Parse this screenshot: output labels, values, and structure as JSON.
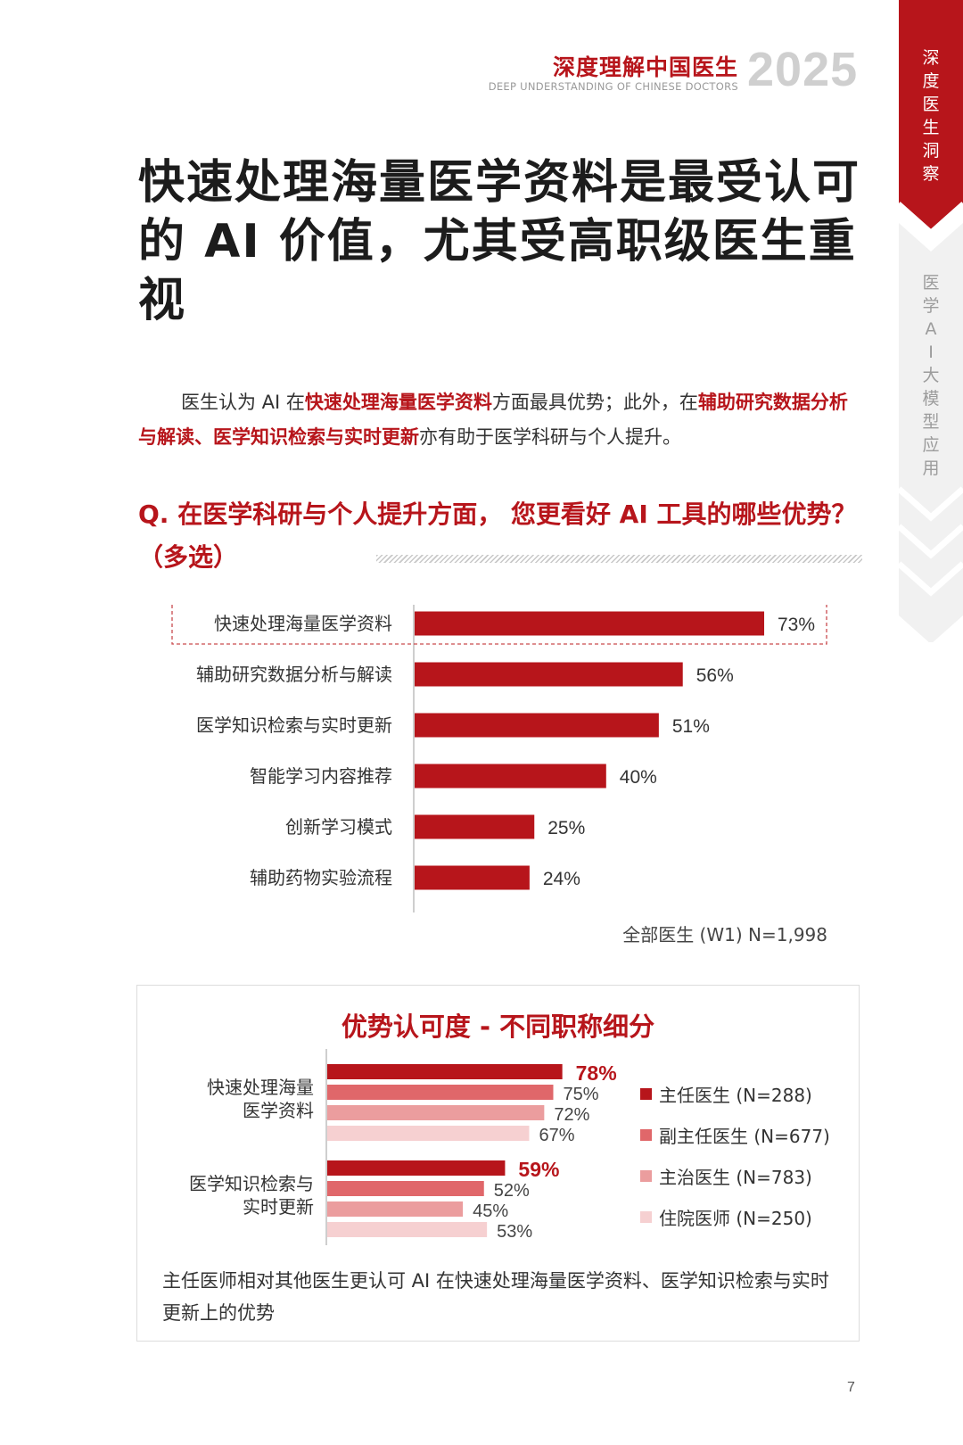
{
  "header": {
    "title_cn": "深度理解中国医生",
    "title_en": "DEEP UNDERSTANDING OF CHINESE DOCTORS",
    "year": "2025"
  },
  "side_tabs": {
    "active": "深度医生洞察",
    "inactive": "医学AI大模型应用"
  },
  "title": "快速处理海量医学资料是最受认可的 AI 价值，尤其受高职级医生重视",
  "intro": {
    "p1": "医生认为 AI 在",
    "h1": "快速处理海量医学资料",
    "p2": "方面最具优势；此外，在",
    "h2": "辅助研究数据分析与解读、医学知识检索与实时更新",
    "p3": "亦有助于医学科研与个人提升。"
  },
  "question": "Q. 在医学科研与个人提升方面， 您更看好 AI 工具的哪些优势？（多选）",
  "colors": {
    "accent": "#b7151b",
    "s1": "#b7151b",
    "s2": "#e0676a",
    "s3": "#eb9d9e",
    "s4": "#f6d0d1"
  },
  "chart_data": [
    {
      "type": "bar",
      "orientation": "horizontal",
      "categories": [
        "快速处理海量医学资料",
        "辅助研究数据分析与解读",
        "医学知识检索与实时更新",
        "智能学习内容推荐",
        "创新学习模式",
        "辅助药物实验流程"
      ],
      "values": [
        73,
        56,
        51,
        40,
        25,
        24
      ],
      "value_labels": [
        "73%",
        "56%",
        "51%",
        "40%",
        "25%",
        "24%"
      ],
      "highlighted_category": "快速处理海量医学资料",
      "note": "全部医生 (W1) N=1,998",
      "xlim": [
        0,
        100
      ]
    },
    {
      "type": "bar",
      "orientation": "horizontal",
      "title": "优势认可度 - 不同职称细分",
      "categories": [
        "快速处理海量医学资料",
        "医学知识检索与实时更新"
      ],
      "category_lines": [
        [
          "快速处理海量",
          "医学资料"
        ],
        [
          "医学知识检索与",
          "实时更新"
        ]
      ],
      "series": [
        {
          "name": "主任医生 (N=288)",
          "values": [
            78,
            59
          ],
          "labels": [
            "78%",
            "59%"
          ]
        },
        {
          "name": "副主任医生 (N=677)",
          "values": [
            75,
            52
          ],
          "labels": [
            "75%",
            "52%"
          ]
        },
        {
          "name": "主治医生 (N=783)",
          "values": [
            72,
            45
          ],
          "labels": [
            "72%",
            "45%"
          ]
        },
        {
          "name": "住院医师 (N=250)",
          "values": [
            67,
            53
          ],
          "labels": [
            "67%",
            "53%"
          ]
        }
      ],
      "note": "主任医师相对其他医生更认可 AI 在快速处理海量医学资料、医学知识检索与实时更新上的优势",
      "xlim": [
        0,
        100
      ]
    }
  ],
  "page_number": "7"
}
